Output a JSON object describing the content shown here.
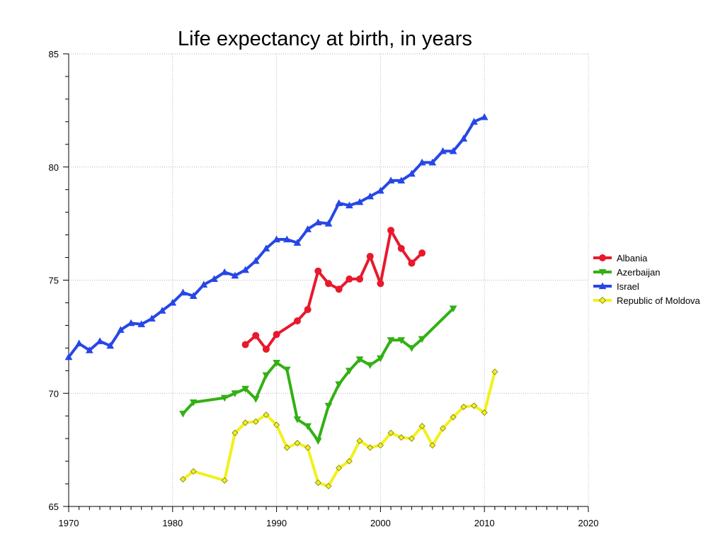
{
  "chart_data": {
    "type": "line",
    "title": "Life expectancy at birth, in years",
    "xlabel": "",
    "ylabel": "",
    "xlim": [
      1970,
      2020
    ],
    "ylim": [
      65,
      85
    ],
    "x_ticks": [
      1970,
      1980,
      1990,
      2000,
      2010,
      2020
    ],
    "y_ticks": [
      65,
      70,
      75,
      80,
      85
    ],
    "x_minor_step": 1,
    "y_minor_step": 1,
    "grid": true,
    "legend_position": "right",
    "series": [
      {
        "name": "Albania",
        "color": "#e8192c",
        "marker": "circle",
        "x": [
          1987,
          1988,
          1989,
          1990,
          1992,
          1993,
          1994,
          1995,
          1996,
          1997,
          1998,
          1999,
          2000,
          2001,
          2002,
          2003,
          2004
        ],
        "y": [
          72.15,
          72.55,
          71.95,
          72.6,
          73.2,
          73.7,
          75.4,
          74.85,
          74.6,
          75.05,
          75.05,
          76.05,
          74.85,
          77.2,
          76.4,
          75.75,
          76.2
        ]
      },
      {
        "name": "Azerbaijan",
        "color": "#33b014",
        "marker": "triangle-down",
        "x": [
          1981,
          1982,
          1985,
          1986,
          1987,
          1988,
          1989,
          1990,
          1991,
          1992,
          1993,
          1994,
          1995,
          1996,
          1997,
          1998,
          1999,
          2000,
          2001,
          2002,
          2003,
          2004,
          2007
        ],
        "y": [
          69.1,
          69.6,
          69.8,
          70.0,
          70.2,
          69.75,
          70.8,
          71.35,
          71.05,
          68.85,
          68.55,
          67.9,
          69.45,
          70.4,
          71.0,
          71.5,
          71.25,
          71.55,
          72.35,
          72.35,
          72.0,
          72.4,
          73.75
        ]
      },
      {
        "name": "Israel",
        "color": "#2647e6",
        "marker": "triangle-up",
        "x": [
          1970,
          1971,
          1972,
          1973,
          1974,
          1975,
          1976,
          1977,
          1978,
          1979,
          1980,
          1981,
          1982,
          1983,
          1984,
          1985,
          1986,
          1987,
          1988,
          1989,
          1990,
          1991,
          1992,
          1993,
          1994,
          1995,
          1996,
          1997,
          1998,
          1999,
          2000,
          2001,
          2002,
          2003,
          2004,
          2005,
          2006,
          2007,
          2008,
          2009,
          2010
        ],
        "y": [
          71.6,
          72.2,
          71.9,
          72.3,
          72.1,
          72.8,
          73.1,
          73.05,
          73.3,
          73.65,
          74.0,
          74.45,
          74.3,
          74.8,
          75.05,
          75.35,
          75.2,
          75.45,
          75.85,
          76.4,
          76.8,
          76.8,
          76.65,
          77.25,
          77.55,
          77.5,
          78.4,
          78.3,
          78.45,
          78.7,
          78.95,
          79.4,
          79.4,
          79.7,
          80.2,
          80.2,
          80.7,
          80.7,
          81.25,
          82.0,
          82.2
        ]
      },
      {
        "name": "Republic of Moldova",
        "color": "#f2f01a",
        "marker": "diamond",
        "x": [
          1981,
          1982,
          1985,
          1986,
          1987,
          1988,
          1989,
          1990,
          1991,
          1992,
          1993,
          1994,
          1995,
          1996,
          1997,
          1998,
          1999,
          2000,
          2001,
          2002,
          2003,
          2004,
          2005,
          2006,
          2007,
          2008,
          2009,
          2010,
          2011
        ],
        "y": [
          66.2,
          66.55,
          66.15,
          68.25,
          68.7,
          68.75,
          69.05,
          68.6,
          67.6,
          67.8,
          67.6,
          66.05,
          65.9,
          66.7,
          67.0,
          67.9,
          67.6,
          67.7,
          68.25,
          68.05,
          68.0,
          68.55,
          67.7,
          68.45,
          68.95,
          69.4,
          69.45,
          69.15,
          70.95
        ]
      }
    ]
  }
}
